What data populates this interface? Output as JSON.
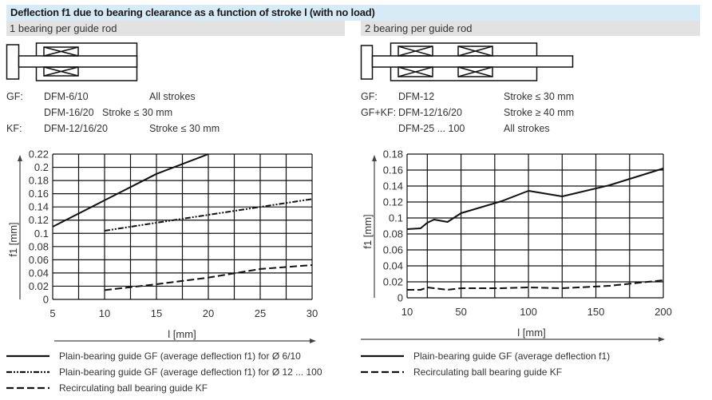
{
  "header": {
    "title": "Deflection f1 due to bearing clearance as a function of stroke l (with no load)"
  },
  "left": {
    "subtitle": "1 bearing per guide rod",
    "specs": [
      {
        "type": "GF:",
        "model": "DFM-6/10",
        "stroke": "All strokes"
      },
      {
        "type": "",
        "model": "DFM-16/20",
        "stroke": "Stroke ≤ 30 mm"
      },
      {
        "type": "KF:",
        "model": "DFM-12/16/20",
        "stroke": "Stroke ≤ 30 mm"
      }
    ],
    "legend": [
      {
        "style": "solid",
        "label": "Plain-bearing guide GF (average deflection f1) for Ø 6/10"
      },
      {
        "style": "dash-dot-dot",
        "label": "Plain-bearing guide GF (average deflection f1) for Ø 12 ... 100"
      },
      {
        "style": "dashed",
        "label": "Recirculating ball bearing guide KF"
      }
    ]
  },
  "right": {
    "subtitle": "2 bearing per guide rod",
    "specs": [
      {
        "type": "GF:",
        "model": "DFM-12",
        "stroke": "Stroke ≤ 30 mm"
      },
      {
        "type": "GF+KF:",
        "model": "DFM-12/16/20",
        "stroke": "Stroke ≥ 40 mm"
      },
      {
        "type": "",
        "model": "DFM-25 ... 100",
        "stroke": "All strokes"
      }
    ],
    "legend": [
      {
        "style": "solid",
        "label": "Plain-bearing guide GF (average deflection f1)"
      },
      {
        "style": "dashed",
        "label": "Recirculating ball bearing guide KF"
      }
    ]
  },
  "chart_data": [
    {
      "type": "line",
      "xlabel": "l [mm]",
      "ylabel": "f1 [mm]",
      "xlim": [
        5,
        30
      ],
      "ylim": [
        0,
        0.22
      ],
      "xticks": [
        "5",
        "10",
        "15",
        "20",
        "25",
        "30"
      ],
      "yticks": [
        "0",
        "0.02",
        "0.04",
        "0.06",
        "0.08",
        "0.1",
        "0.12",
        "0.14",
        "0.16",
        "0.18",
        "0.2",
        "0.22"
      ],
      "grid": true,
      "series": [
        {
          "name": "Plain-bearing guide GF (average deflection f1) for Ø 6/10",
          "style": "solid",
          "x": [
            5,
            10,
            15,
            20
          ],
          "y": [
            0.11,
            0.15,
            0.19,
            0.22
          ]
        },
        {
          "name": "Plain-bearing guide GF (average deflection f1) for Ø 12 ... 100",
          "style": "dash-dot-dot",
          "x": [
            10,
            15,
            20,
            25,
            30
          ],
          "y": [
            0.104,
            0.116,
            0.128,
            0.14,
            0.152
          ]
        },
        {
          "name": "Recirculating ball bearing guide KF",
          "style": "dashed",
          "x": [
            10,
            15,
            20,
            25,
            30
          ],
          "y": [
            0.014,
            0.023,
            0.033,
            0.046,
            0.052
          ]
        }
      ]
    },
    {
      "type": "line",
      "xlabel": "l [mm]",
      "ylabel": "f1 [mm]",
      "xlim": [
        10,
        200
      ],
      "ylim": [
        0,
        0.18
      ],
      "xticks": [
        "10",
        "50",
        "100",
        "150",
        "200"
      ],
      "yticks": [
        "0",
        "0.02",
        "0.04",
        "0.06",
        "0.08",
        "0.1",
        "0.12",
        "0.14",
        "0.16",
        "0.18"
      ],
      "grid": true,
      "series": [
        {
          "name": "Plain-bearing guide GF (average deflection f1)",
          "style": "solid",
          "x": [
            10,
            20,
            25,
            30,
            40,
            50,
            80,
            100,
            125,
            160,
            200
          ],
          "y": [
            0.086,
            0.087,
            0.094,
            0.098,
            0.095,
            0.106,
            0.121,
            0.134,
            0.127,
            0.141,
            0.162
          ]
        },
        {
          "name": "Recirculating ball bearing guide KF",
          "style": "dashed",
          "x": [
            10,
            20,
            25,
            30,
            40,
            50,
            80,
            100,
            125,
            160,
            200
          ],
          "y": [
            0.01,
            0.01,
            0.013,
            0.012,
            0.01,
            0.012,
            0.012,
            0.013,
            0.012,
            0.015,
            0.022
          ]
        }
      ]
    }
  ]
}
